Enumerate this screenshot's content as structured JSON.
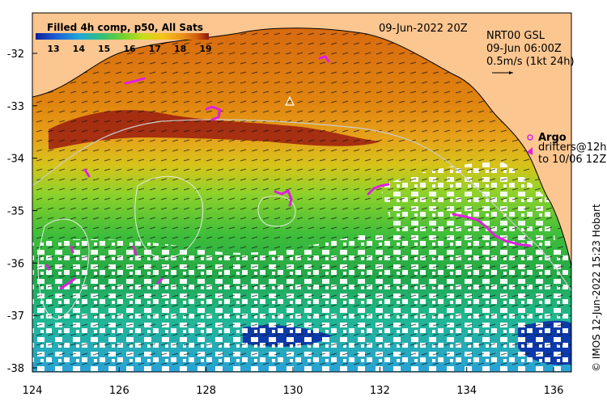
{
  "map": {
    "date_label": "09-Jun-2022 20Z",
    "product": {
      "line1": "NRT00 GSL",
      "line2": "09-Jun 06:00Z",
      "line3": "0.5m/s (1kt 24h)"
    },
    "argo": {
      "label": "Argo",
      "drifters_line1": "drifters@12h",
      "drifters_line2": "to 10/06 12Z"
    },
    "credit": "© IMOS 12-Jun-2022 15:23 Hobart",
    "colorbar": {
      "title": "Filled 4h comp, p50, All Sats",
      "ticks": [
        "13",
        "14",
        "15",
        "16",
        "17",
        "18",
        "19"
      ],
      "colors": [
        "#0a1e9c",
        "#1b5fd6",
        "#1ea6d8",
        "#2fc07a",
        "#6fcf2f",
        "#c8dc1a",
        "#f4c21a",
        "#e9901a",
        "#d2600e",
        "#8e1410"
      ]
    },
    "x_ticks": [
      "124",
      "126",
      "128",
      "130",
      "132",
      "134",
      "136"
    ],
    "y_ticks": [
      "-32",
      "-33",
      "-34",
      "-35",
      "-36",
      "-37",
      "-38"
    ],
    "land_color": "#fcc690"
  }
}
